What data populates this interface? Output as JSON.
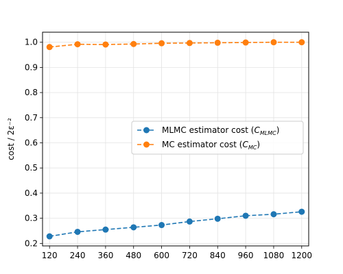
{
  "chart_data": {
    "type": "line",
    "x": [
      120,
      240,
      360,
      480,
      600,
      720,
      840,
      960,
      1080,
      1200
    ],
    "xticks": [
      "120",
      "240",
      "360",
      "480",
      "600",
      "720",
      "840",
      "960",
      "1080",
      "1200"
    ],
    "ylabel": "cost / 2ε⁻²",
    "ylim": [
      0.19,
      1.04
    ],
    "yticks": [
      0.2,
      0.3,
      0.4,
      0.5,
      0.6,
      0.7,
      0.8,
      0.9,
      1.0
    ],
    "grid": true,
    "legend_position": "center-right",
    "series": [
      {
        "name": "MLMC estimator cost (C_MLMC)",
        "legend_main": "MLMC estimator cost (",
        "legend_var": "C",
        "legend_sub": "MLMC",
        "legend_close": ")",
        "color": "#1f77b4",
        "values": [
          0.228,
          0.246,
          0.255,
          0.264,
          0.273,
          0.287,
          0.298,
          0.31,
          0.316,
          0.326
        ]
      },
      {
        "name": "MC estimator cost (C_MC)",
        "legend_main": "MC estimator cost (",
        "legend_var": "C",
        "legend_sub": "MC",
        "legend_close": ")",
        "color": "#ff7f0e",
        "values": [
          0.981,
          0.992,
          0.991,
          0.993,
          0.996,
          0.997,
          0.998,
          0.999,
          1.0,
          1.0
        ]
      }
    ]
  }
}
